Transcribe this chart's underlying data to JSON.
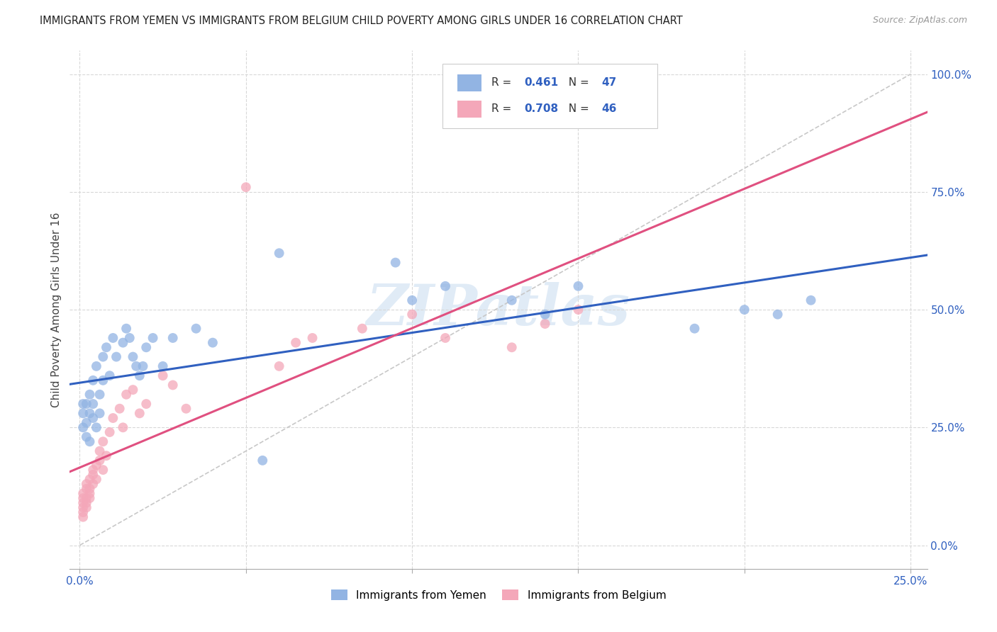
{
  "title": "IMMIGRANTS FROM YEMEN VS IMMIGRANTS FROM BELGIUM CHILD POVERTY AMONG GIRLS UNDER 16 CORRELATION CHART",
  "source": "Source: ZipAtlas.com",
  "ylabel": "Child Poverty Among Girls Under 16",
  "color_yemen": "#92b4e3",
  "color_belgium": "#f4a7b9",
  "color_line_yemen": "#3060c0",
  "color_line_belgium": "#e05080",
  "r_yemen": "0.461",
  "n_yemen": "47",
  "r_belgium": "0.708",
  "n_belgium": "46",
  "watermark": "ZIPatlas",
  "xlim": [
    0.0,
    0.25
  ],
  "ylim": [
    0.0,
    1.0
  ],
  "ytick_vals": [
    0.0,
    0.25,
    0.5,
    0.75,
    1.0
  ],
  "ytick_labels": [
    "0.0%",
    "25.0%",
    "50.0%",
    "75.0%",
    "100.0%"
  ],
  "xtick_edge_left": "0.0%",
  "xtick_edge_right": "25.0%",
  "yemen_scatter_x": [
    0.001,
    0.001,
    0.001,
    0.002,
    0.002,
    0.002,
    0.003,
    0.003,
    0.003,
    0.004,
    0.004,
    0.004,
    0.005,
    0.005,
    0.006,
    0.006,
    0.007,
    0.007,
    0.008,
    0.009,
    0.01,
    0.011,
    0.013,
    0.014,
    0.015,
    0.016,
    0.017,
    0.018,
    0.019,
    0.02,
    0.022,
    0.025,
    0.028,
    0.035,
    0.04,
    0.055,
    0.06,
    0.095,
    0.1,
    0.11,
    0.13,
    0.14,
    0.15,
    0.185,
    0.2,
    0.21,
    0.22
  ],
  "yemen_scatter_y": [
    0.28,
    0.3,
    0.25,
    0.26,
    0.23,
    0.3,
    0.32,
    0.28,
    0.22,
    0.35,
    0.3,
    0.27,
    0.38,
    0.25,
    0.32,
    0.28,
    0.4,
    0.35,
    0.42,
    0.36,
    0.44,
    0.4,
    0.43,
    0.46,
    0.44,
    0.4,
    0.38,
    0.36,
    0.38,
    0.42,
    0.44,
    0.38,
    0.44,
    0.46,
    0.43,
    0.18,
    0.62,
    0.6,
    0.52,
    0.55,
    0.52,
    0.49,
    0.55,
    0.46,
    0.5,
    0.49,
    0.52
  ],
  "belgium_scatter_x": [
    0.001,
    0.001,
    0.001,
    0.001,
    0.001,
    0.001,
    0.002,
    0.002,
    0.002,
    0.002,
    0.002,
    0.003,
    0.003,
    0.003,
    0.003,
    0.004,
    0.004,
    0.004,
    0.005,
    0.005,
    0.006,
    0.006,
    0.007,
    0.007,
    0.008,
    0.009,
    0.01,
    0.012,
    0.013,
    0.014,
    0.016,
    0.018,
    0.02,
    0.025,
    0.028,
    0.032,
    0.05,
    0.06,
    0.065,
    0.07,
    0.085,
    0.1,
    0.11,
    0.13,
    0.14,
    0.15
  ],
  "belgium_scatter_y": [
    0.08,
    0.1,
    0.09,
    0.07,
    0.06,
    0.11,
    0.12,
    0.09,
    0.08,
    0.1,
    0.13,
    0.11,
    0.14,
    0.1,
    0.12,
    0.15,
    0.13,
    0.16,
    0.17,
    0.14,
    0.18,
    0.2,
    0.16,
    0.22,
    0.19,
    0.24,
    0.27,
    0.29,
    0.25,
    0.32,
    0.33,
    0.28,
    0.3,
    0.36,
    0.34,
    0.29,
    0.76,
    0.38,
    0.43,
    0.44,
    0.46,
    0.49,
    0.44,
    0.42,
    0.47,
    0.5
  ],
  "legend_label_yemen": "Immigrants from Yemen",
  "legend_label_belgium": "Immigrants from Belgium"
}
